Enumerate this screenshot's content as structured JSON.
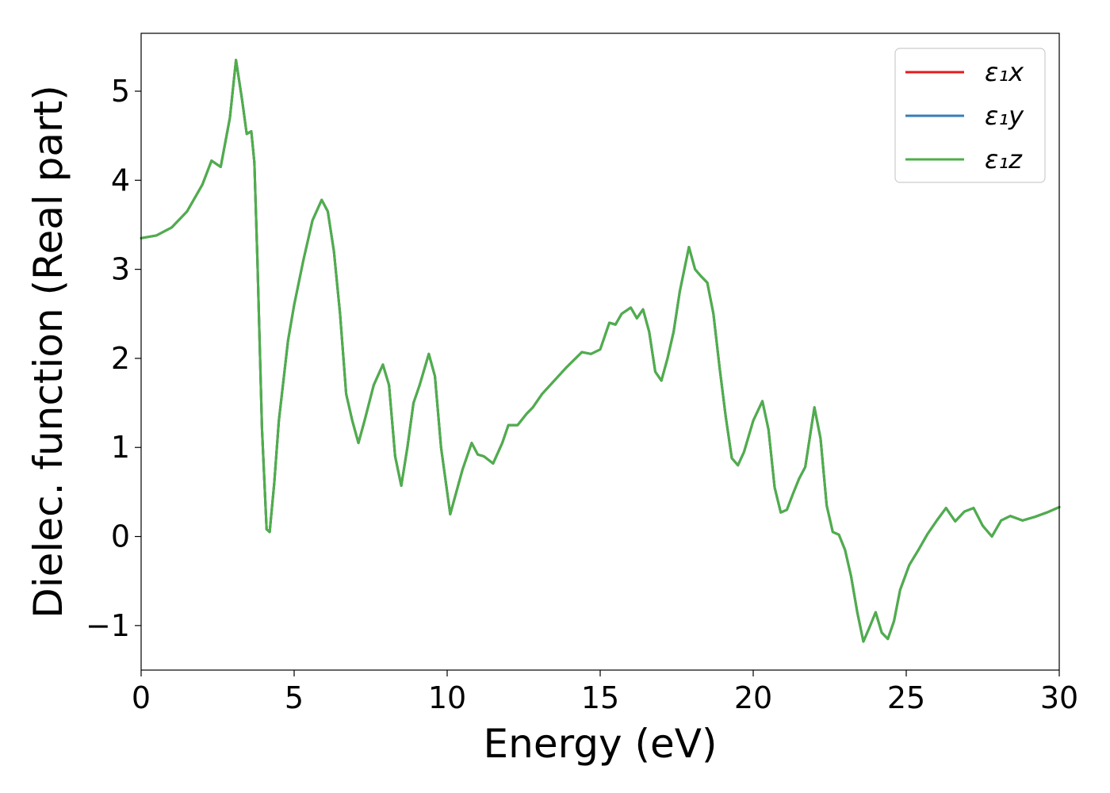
{
  "chart_data": {
    "type": "line",
    "title": "",
    "xlabel": "Energy (eV)",
    "ylabel": "Dielec. function (Real part)",
    "xlim": [
      0,
      30
    ],
    "ylim": [
      -1.5,
      5.65
    ],
    "xticks": [
      0,
      5,
      10,
      15,
      20,
      25,
      30
    ],
    "xtick_labels": [
      "0",
      "5",
      "10",
      "15",
      "20",
      "25",
      "30"
    ],
    "yticks": [
      -1,
      0,
      1,
      2,
      3,
      4,
      5
    ],
    "ytick_labels": [
      "−1",
      "0",
      "1",
      "2",
      "3",
      "4",
      "5"
    ],
    "grid": false,
    "legend_position": "top-right",
    "x": [
      0,
      0.5,
      1.0,
      1.5,
      2.0,
      2.3,
      2.6,
      2.9,
      3.1,
      3.3,
      3.45,
      3.6,
      3.7,
      3.8,
      3.95,
      4.1,
      4.2,
      4.35,
      4.5,
      4.8,
      5.0,
      5.3,
      5.6,
      5.9,
      6.1,
      6.3,
      6.5,
      6.7,
      6.9,
      7.1,
      7.3,
      7.6,
      7.9,
      8.1,
      8.3,
      8.5,
      8.7,
      8.9,
      9.1,
      9.4,
      9.6,
      9.8,
      10.1,
      10.3,
      10.5,
      10.8,
      11.0,
      11.2,
      11.5,
      11.8,
      12.0,
      12.3,
      12.6,
      12.8,
      13.1,
      13.5,
      13.9,
      14.4,
      14.7,
      15.0,
      15.3,
      15.5,
      15.7,
      16.0,
      16.2,
      16.4,
      16.6,
      16.8,
      17.0,
      17.2,
      17.4,
      17.6,
      17.9,
      18.1,
      18.3,
      18.5,
      18.7,
      18.9,
      19.1,
      19.3,
      19.5,
      19.7,
      20.0,
      20.3,
      20.5,
      20.7,
      20.9,
      21.1,
      21.3,
      21.5,
      21.7,
      22.0,
      22.2,
      22.4,
      22.6,
      22.8,
      23.0,
      23.2,
      23.4,
      23.6,
      23.8,
      24.0,
      24.2,
      24.4,
      24.6,
      24.8,
      25.1,
      25.4,
      25.7,
      26.0,
      26.3,
      26.6,
      26.9,
      27.2,
      27.5,
      27.8,
      28.1,
      28.4,
      28.8,
      29.2,
      29.6,
      30.0
    ],
    "series": [
      {
        "name": "ε₁x",
        "color": "#e41a1c",
        "values": [
          3.35,
          3.38,
          3.47,
          3.65,
          3.95,
          4.22,
          4.15,
          4.7,
          5.35,
          4.9,
          4.52,
          4.55,
          4.2,
          3.1,
          1.2,
          0.08,
          0.05,
          0.6,
          1.3,
          2.2,
          2.6,
          3.1,
          3.55,
          3.78,
          3.65,
          3.2,
          2.5,
          1.6,
          1.3,
          1.05,
          1.3,
          1.7,
          1.93,
          1.7,
          0.9,
          0.57,
          1.0,
          1.5,
          1.7,
          2.05,
          1.8,
          1.0,
          0.25,
          0.5,
          0.75,
          1.05,
          0.92,
          0.9,
          0.82,
          1.05,
          1.25,
          1.25,
          1.38,
          1.45,
          1.6,
          1.75,
          1.9,
          2.07,
          2.05,
          2.1,
          2.4,
          2.38,
          2.5,
          2.57,
          2.45,
          2.55,
          2.3,
          1.85,
          1.75,
          2.0,
          2.3,
          2.75,
          3.25,
          3.0,
          2.92,
          2.85,
          2.5,
          1.9,
          1.35,
          0.88,
          0.8,
          0.95,
          1.3,
          1.52,
          1.2,
          0.55,
          0.27,
          0.3,
          0.48,
          0.65,
          0.78,
          1.45,
          1.1,
          0.35,
          0.05,
          0.02,
          -0.15,
          -0.45,
          -0.85,
          -1.18,
          -1.02,
          -0.85,
          -1.08,
          -1.15,
          -0.95,
          -0.6,
          -0.32,
          -0.15,
          0.03,
          0.18,
          0.32,
          0.17,
          0.28,
          0.32,
          0.12,
          0.0,
          0.18,
          0.23,
          0.18,
          0.22,
          0.27,
          0.33
        ]
      },
      {
        "name": "ε₁y",
        "color": "#377eb8",
        "values": [
          3.35,
          3.38,
          3.47,
          3.65,
          3.95,
          4.22,
          4.15,
          4.7,
          5.35,
          4.9,
          4.52,
          4.55,
          4.2,
          3.1,
          1.2,
          0.08,
          0.05,
          0.6,
          1.3,
          2.2,
          2.6,
          3.1,
          3.55,
          3.78,
          3.65,
          3.2,
          2.5,
          1.6,
          1.3,
          1.05,
          1.3,
          1.7,
          1.93,
          1.7,
          0.9,
          0.57,
          1.0,
          1.5,
          1.7,
          2.05,
          1.8,
          1.0,
          0.25,
          0.5,
          0.75,
          1.05,
          0.92,
          0.9,
          0.82,
          1.05,
          1.25,
          1.25,
          1.38,
          1.45,
          1.6,
          1.75,
          1.9,
          2.07,
          2.05,
          2.1,
          2.4,
          2.38,
          2.5,
          2.57,
          2.45,
          2.55,
          2.3,
          1.85,
          1.75,
          2.0,
          2.3,
          2.75,
          3.25,
          3.0,
          2.92,
          2.85,
          2.5,
          1.9,
          1.35,
          0.88,
          0.8,
          0.95,
          1.3,
          1.52,
          1.2,
          0.55,
          0.27,
          0.3,
          0.48,
          0.65,
          0.78,
          1.45,
          1.1,
          0.35,
          0.05,
          0.02,
          -0.15,
          -0.45,
          -0.85,
          -1.18,
          -1.02,
          -0.85,
          -1.08,
          -1.15,
          -0.95,
          -0.6,
          -0.32,
          -0.15,
          0.03,
          0.18,
          0.32,
          0.17,
          0.28,
          0.32,
          0.12,
          0.0,
          0.18,
          0.23,
          0.18,
          0.22,
          0.27,
          0.33
        ]
      },
      {
        "name": "ε₁z",
        "color": "#4daf4a",
        "values": [
          3.35,
          3.38,
          3.47,
          3.65,
          3.95,
          4.22,
          4.15,
          4.7,
          5.35,
          4.9,
          4.52,
          4.55,
          4.2,
          3.1,
          1.2,
          0.08,
          0.05,
          0.6,
          1.3,
          2.2,
          2.6,
          3.1,
          3.55,
          3.78,
          3.65,
          3.2,
          2.5,
          1.6,
          1.3,
          1.05,
          1.3,
          1.7,
          1.93,
          1.7,
          0.9,
          0.57,
          1.0,
          1.5,
          1.7,
          2.05,
          1.8,
          1.0,
          0.25,
          0.5,
          0.75,
          1.05,
          0.92,
          0.9,
          0.82,
          1.05,
          1.25,
          1.25,
          1.38,
          1.45,
          1.6,
          1.75,
          1.9,
          2.07,
          2.05,
          2.1,
          2.4,
          2.38,
          2.5,
          2.57,
          2.45,
          2.55,
          2.3,
          1.85,
          1.75,
          2.0,
          2.3,
          2.75,
          3.25,
          3.0,
          2.92,
          2.85,
          2.5,
          1.9,
          1.35,
          0.88,
          0.8,
          0.95,
          1.3,
          1.52,
          1.2,
          0.55,
          0.27,
          0.3,
          0.48,
          0.65,
          0.78,
          1.45,
          1.1,
          0.35,
          0.05,
          0.02,
          -0.15,
          -0.45,
          -0.85,
          -1.18,
          -1.02,
          -0.85,
          -1.08,
          -1.15,
          -0.95,
          -0.6,
          -0.32,
          -0.15,
          0.03,
          0.18,
          0.32,
          0.17,
          0.28,
          0.32,
          0.12,
          0.0,
          0.18,
          0.23,
          0.18,
          0.22,
          0.27,
          0.33
        ]
      }
    ]
  }
}
